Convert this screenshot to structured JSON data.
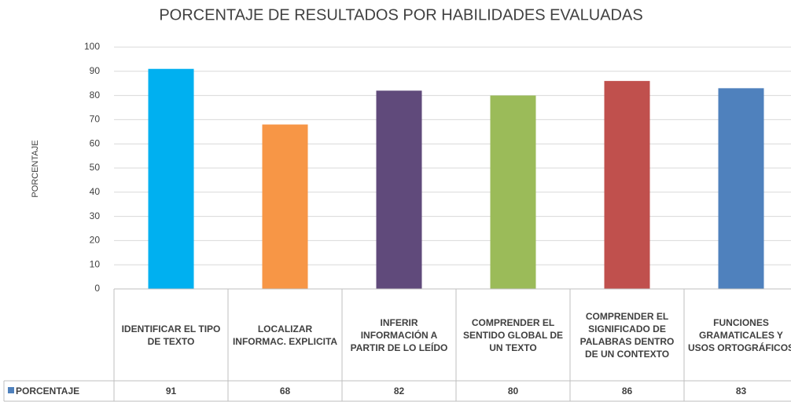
{
  "chart_data": {
    "type": "bar",
    "title": "PORCENTAJE DE RESULTADOS POR HABILIDADES EVALUADAS",
    "y_label": "PORCENTAJE",
    "categories": [
      "IDENTIFICAR EL TIPO DE TEXTO",
      "LOCALIZAR INFORMAC. EXPLICITA",
      "INFERIR INFORMACIÓN A PARTIR DE LO LEÍDO",
      "COMPRENDER EL SENTIDO GLOBAL DE UN TEXTO",
      "COMPRENDER EL SIGNIFICADO DE PALABRAS DENTRO DE UN CONTEXTO",
      "FUNCIONES GRAMATICALES Y USOS ORTOGRÁFICOS"
    ],
    "series": [
      {
        "name": "PORCENTAJE",
        "color": "#4f81bd",
        "values": [
          91,
          68,
          82,
          80,
          86,
          83
        ],
        "point_colors": [
          "#00b0f0",
          "#f79646",
          "#604a7b",
          "#9bbb59",
          "#c0504d",
          "#4f81bd"
        ]
      }
    ],
    "ylim": [
      0,
      100
    ],
    "yticks": [
      0,
      10,
      20,
      30,
      40,
      50,
      60,
      70,
      80,
      90,
      100
    ],
    "grid": true,
    "data_table": true
  }
}
